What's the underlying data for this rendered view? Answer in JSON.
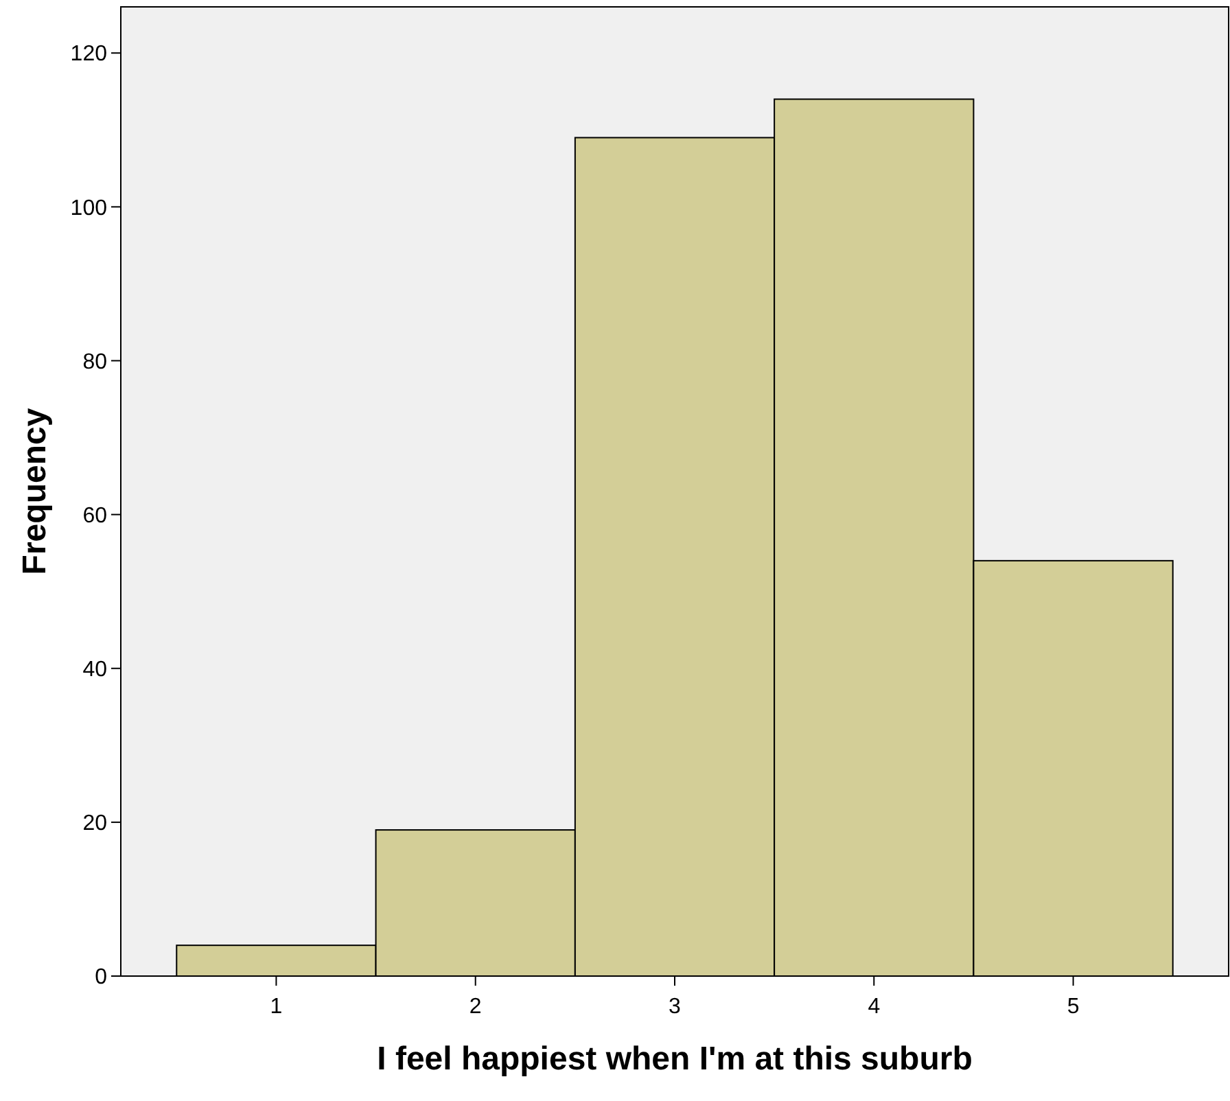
{
  "chart_data": {
    "type": "bar",
    "xlabel": "I feel happiest when I'm at this suburb",
    "ylabel": "Frequency",
    "categories": [
      "1",
      "2",
      "3",
      "4",
      "5"
    ],
    "values": [
      4,
      19,
      109,
      114,
      54
    ],
    "color": "#d3ce97",
    "ylim": [
      0,
      126
    ],
    "yticks": [
      0,
      20,
      40,
      60,
      80,
      100,
      120
    ],
    "grid": false
  }
}
